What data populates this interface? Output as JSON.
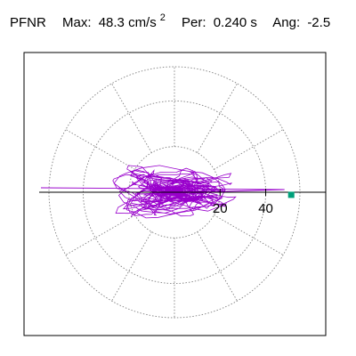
{
  "header": {
    "station": "PFNR",
    "max_label": "Max:",
    "max_value": "48.3 cm/s",
    "max_exp": "2",
    "per_label": "Per:",
    "per_value": "0.240 s",
    "ang_label": "Ang:",
    "ang_value": "-2.5"
  },
  "colors": {
    "trace": "#9900cc",
    "grid": "#808080",
    "frame": "#000000",
    "marker": "#00a07a"
  },
  "chart_data": {
    "type": "polar-particle-motion",
    "units": "cm/s^2",
    "radius_max": 55,
    "ring_values": [
      20,
      40
    ],
    "tick_labels": [
      "20",
      "40"
    ],
    "spoke_count": 12,
    "peak_value": 48.3,
    "peak_angle_deg": -2.5,
    "grid": true
  }
}
